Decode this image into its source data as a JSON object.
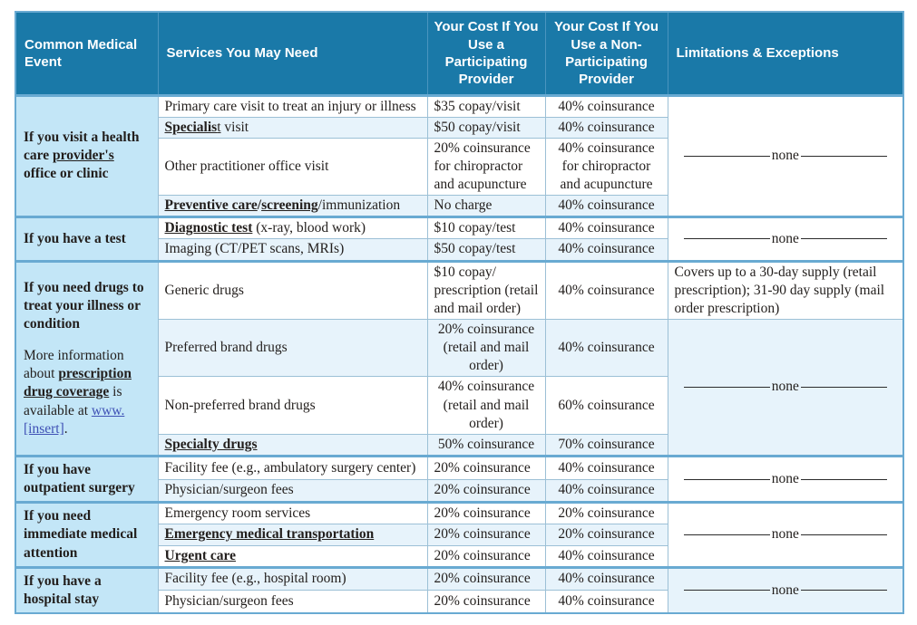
{
  "colors": {
    "header_bg": "#1a79a8",
    "header_text": "#ffffff",
    "event_cell_bg": "#c3e6f7",
    "row_shade_bg": "#e7f3fb",
    "section_divider": "#69aad2",
    "cell_border": "#9cc0d6",
    "link": "#3f51b5"
  },
  "table": {
    "none_label": "none",
    "headers": [
      {
        "id": "event",
        "label": "Common Medical Event",
        "align": "left"
      },
      {
        "id": "services",
        "label": "Services You May Need",
        "align": "left"
      },
      {
        "id": "participating",
        "label": "Your Cost If You Use a Participating Provider",
        "align": "center"
      },
      {
        "id": "non_participating",
        "label": "Your Cost If You Use a Non-Participating Provider",
        "align": "center"
      },
      {
        "id": "limitations",
        "label": "Limitations & Exceptions",
        "align": "left"
      }
    ],
    "sections": [
      {
        "id": "office-visit",
        "event": [
          [
            {
              "t": "If you visit a health care ",
              "s": "b"
            },
            {
              "t": "provider's",
              "s": "t"
            },
            {
              "t": " office or clinic",
              "s": "b"
            }
          ]
        ],
        "rows": [
          {
            "service": [
              {
                "t": "Primary care visit to treat an injury or illness"
              }
            ],
            "participating": "$35 copay/visit",
            "non_participating": "40% coinsurance"
          },
          {
            "service": [
              {
                "t": "Specialis",
                "s": "t"
              },
              {
                "t": "t",
                "s": "u"
              },
              {
                "t": " visit"
              }
            ],
            "participating": "$50 copay/visit",
            "non_participating": "40% coinsurance"
          },
          {
            "service": [
              {
                "t": "Other practitioner office visit"
              }
            ],
            "participating": "20% coinsurance for chiropractor and acupuncture",
            "non_participating": "40% coinsurance for chiropractor and acupuncture"
          },
          {
            "service": [
              {
                "t": "Preventive care",
                "s": "t"
              },
              {
                "t": "/",
                "s": "b"
              },
              {
                "t": "screening",
                "s": "t"
              },
              {
                "t": "/immunization"
              }
            ],
            "participating": "No charge",
            "non_participating": "40% coinsurance"
          }
        ],
        "limitations": [
          {
            "span": 4,
            "none": true
          }
        ]
      },
      {
        "id": "test",
        "event": [
          [
            {
              "t": "If you have a test",
              "s": "b"
            }
          ]
        ],
        "rows": [
          {
            "service": [
              {
                "t": "Diagnostic test",
                "s": "t"
              },
              {
                "t": " (x-ray, blood work)"
              }
            ],
            "participating": "$10 copay/test",
            "non_participating": "40% coinsurance"
          },
          {
            "service": [
              {
                "t": "Imaging (CT/PET scans, MRIs)"
              }
            ],
            "participating": "$50 copay/test",
            "non_participating": "40% coinsurance"
          }
        ],
        "limitations": [
          {
            "span": 2,
            "none": true
          }
        ]
      },
      {
        "id": "drugs",
        "event": [
          [
            {
              "t": "If you need drugs to treat your illness or condition",
              "s": "b"
            }
          ],
          [
            {
              "t": "More information about "
            },
            {
              "t": "prescription drug coverage",
              "s": "t"
            },
            {
              "t": " is available at "
            },
            {
              "t": "www.​[insert]",
              "s": "l"
            },
            {
              "t": "."
            }
          ]
        ],
        "rows": [
          {
            "service": [
              {
                "t": "Generic drugs"
              }
            ],
            "participating": "$10 copay/ prescription (retail and mail order)",
            "non_participating": "40% coinsurance"
          },
          {
            "service": [
              {
                "t": "Preferred brand drugs"
              }
            ],
            "participating": "20% coinsurance (retail and mail order)",
            "participating_center": true,
            "non_participating": "40% coinsurance"
          },
          {
            "service": [
              {
                "t": "Non-preferred brand drugs"
              }
            ],
            "participating": "40% coinsurance (retail and mail order)",
            "participating_center": true,
            "non_participating": "60% coinsurance"
          },
          {
            "service": [
              {
                "t": "Specialty drugs",
                "s": "t"
              }
            ],
            "participating": "50% coinsurance",
            "participating_center": true,
            "non_participating": "70% coinsurance"
          }
        ],
        "limitations": [
          {
            "span": 1,
            "text": "Covers up to a 30-day supply (retail prescription); 31-90 day supply (mail order prescription)"
          },
          {
            "span": 3,
            "none": true
          }
        ]
      },
      {
        "id": "outpatient-surgery",
        "event": [
          [
            {
              "t": "If you have outpatient surgery",
              "s": "b"
            }
          ]
        ],
        "rows": [
          {
            "service": [
              {
                "t": "Facility fee (e.g., ambulatory surgery center)"
              }
            ],
            "participating": "20% coinsurance",
            "non_participating": "40% coinsurance"
          },
          {
            "service": [
              {
                "t": "Physician/surgeon fees"
              }
            ],
            "participating": "20% coinsurance",
            "non_participating": "40% coinsurance"
          }
        ],
        "limitations": [
          {
            "span": 2,
            "none": true
          }
        ]
      },
      {
        "id": "immediate-attention",
        "event": [
          [
            {
              "t": "If you need immediate medical attention",
              "s": "b"
            }
          ]
        ],
        "rows": [
          {
            "service": [
              {
                "t": "Emergency room services"
              }
            ],
            "participating": "20% coinsurance",
            "non_participating": "20% coinsurance"
          },
          {
            "service": [
              {
                "t": "Emergency medical transportation",
                "s": "t"
              }
            ],
            "participating": "20% coinsurance",
            "non_participating": "20% coinsurance"
          },
          {
            "service": [
              {
                "t": "Urgent care",
                "s": "t"
              }
            ],
            "participating": "20% coinsurance",
            "non_participating": "40% coinsurance"
          }
        ],
        "limitations": [
          {
            "span": 3,
            "none": true
          }
        ]
      },
      {
        "id": "hospital-stay",
        "event": [
          [
            {
              "t": "If you have a hospital stay",
              "s": "b"
            }
          ]
        ],
        "rows": [
          {
            "service": [
              {
                "t": "Facility fee (e.g., hospital room)"
              }
            ],
            "participating": "20% coinsurance",
            "non_participating": "40% coinsurance"
          },
          {
            "service": [
              {
                "t": "Physician/surgeon fees"
              }
            ],
            "participating": "20% coinsurance",
            "non_participating": "40% coinsurance"
          }
        ],
        "limitations": [
          {
            "span": 2,
            "none": true
          }
        ]
      }
    ]
  }
}
